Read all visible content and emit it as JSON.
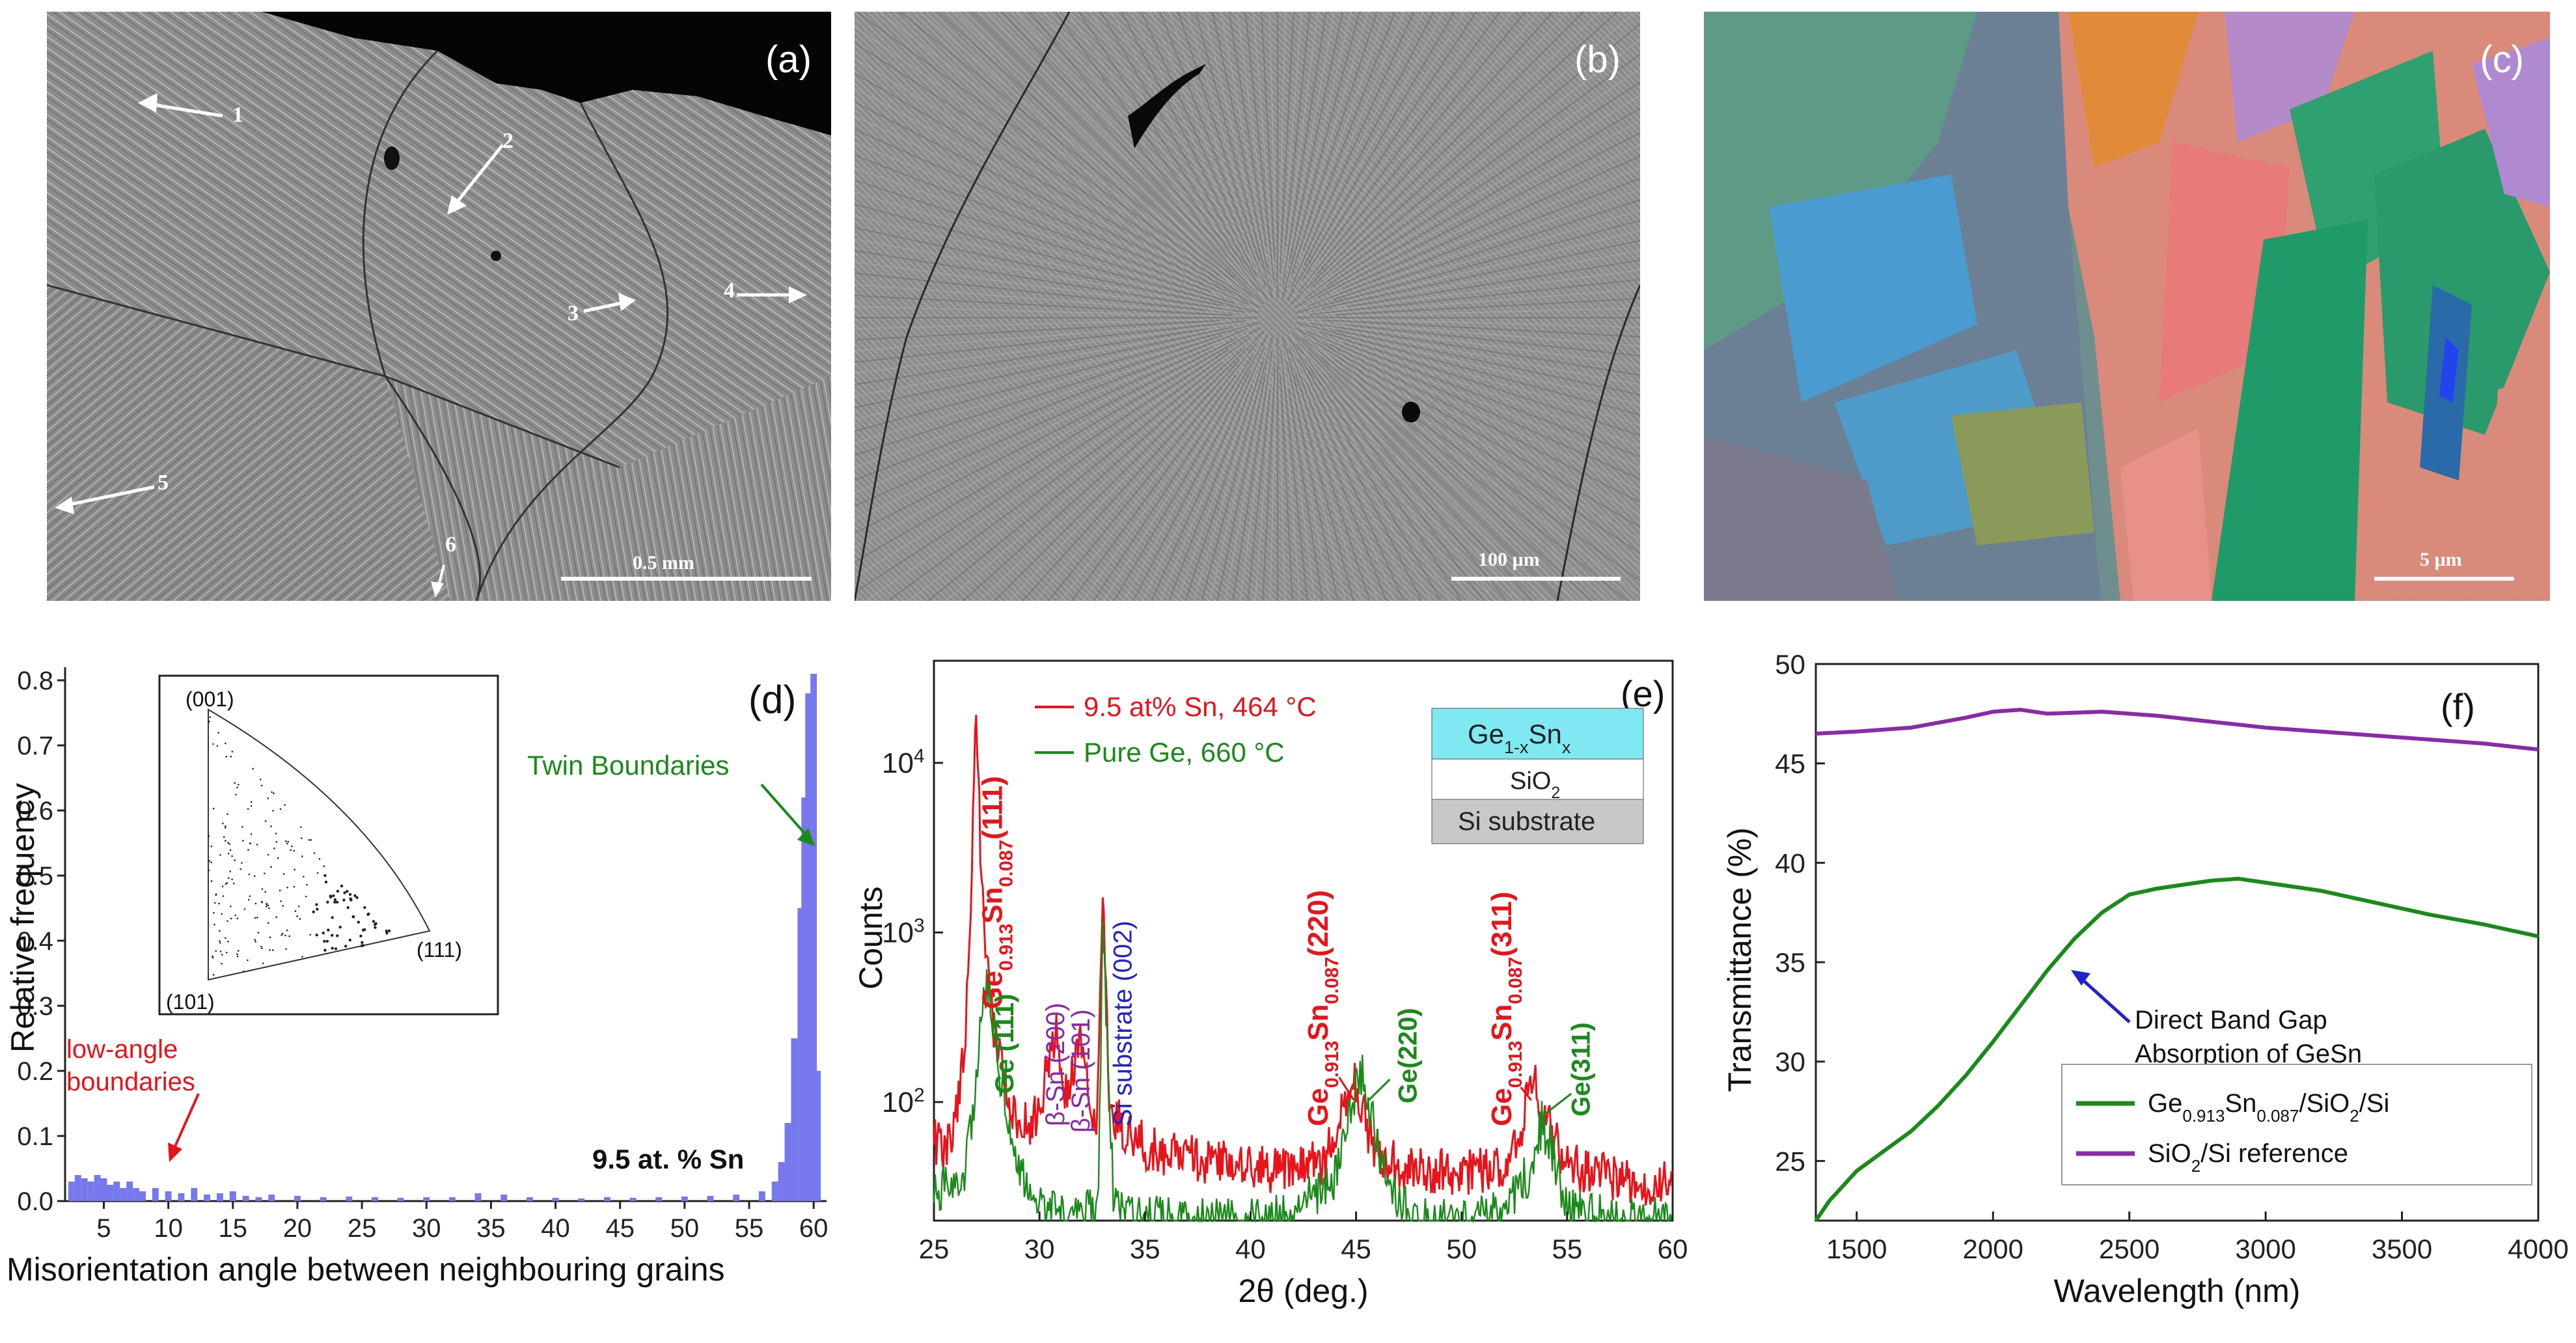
{
  "panels": {
    "a": {
      "label": "(a)",
      "scale": "0.5 mm",
      "arrows": [
        "1",
        "2",
        "3",
        "4",
        "5",
        "6"
      ]
    },
    "b": {
      "label": "(b)",
      "scale": "100 µm"
    },
    "c": {
      "label": "(c)",
      "scale": "5 µm"
    }
  },
  "colors": {
    "red": "#e8141b",
    "green": "#1a8a1a",
    "blue": "#2222cc",
    "purple": "#8a2aa8",
    "hist": "#7777ee",
    "cyan": "#7fe8f0"
  },
  "chart_data": [
    {
      "id": "d",
      "type": "bar",
      "label": "(d)",
      "xlabel": "Misorientation angle between neighbouring grains",
      "ylabel": "Relative frequency",
      "xlim": [
        2,
        61
      ],
      "ylim": [
        0,
        0.82
      ],
      "xticks": [
        "5",
        "10",
        "15",
        "20",
        "25",
        "30",
        "35",
        "40",
        "45",
        "50",
        "55",
        "60"
      ],
      "yticks": [
        "0.0",
        "0.1",
        "0.2",
        "0.3",
        "0.4",
        "0.5",
        "0.6",
        "0.7",
        "0.8"
      ],
      "annotations": {
        "twin": "Twin Boundaries",
        "low1": "low-angle",
        "low2": "boundaries",
        "sample": "9.5 at. % Sn"
      },
      "inset": {
        "top": "(001)",
        "left": "(101)",
        "right": "(111)"
      },
      "series": [
        {
          "name": "9.5 at. % Sn",
          "x": [
            2.5,
            3,
            3.5,
            4,
            4.5,
            5,
            5.5,
            6,
            6.5,
            7,
            7.5,
            8,
            9,
            10,
            11,
            12,
            13,
            14,
            15,
            16,
            17,
            18,
            20,
            22,
            24,
            26,
            28,
            30,
            32,
            34,
            36,
            38,
            40,
            42,
            44,
            46,
            48,
            50,
            52,
            54,
            56,
            57,
            57.5,
            58,
            58.5,
            59,
            59.3,
            59.6,
            60,
            60.3
          ],
          "values": [
            0.03,
            0.04,
            0.035,
            0.03,
            0.04,
            0.035,
            0.025,
            0.03,
            0.02,
            0.03,
            0.02,
            0.015,
            0.02,
            0.015,
            0.012,
            0.02,
            0.01,
            0.012,
            0.015,
            0.008,
            0.006,
            0.01,
            0.008,
            0.006,
            0.007,
            0.006,
            0.005,
            0.006,
            0.006,
            0.012,
            0.01,
            0.006,
            0.005,
            0.004,
            0.006,
            0.005,
            0.006,
            0.007,
            0.008,
            0.01,
            0.015,
            0.03,
            0.06,
            0.12,
            0.25,
            0.45,
            0.62,
            0.78,
            0.81,
            0.2
          ]
        }
      ]
    },
    {
      "id": "e",
      "type": "line",
      "label": "(e)",
      "xlabel": "2θ (deg.)",
      "ylabel": "Counts",
      "xlim": [
        25,
        60
      ],
      "ylim_log": [
        20,
        40000
      ],
      "xticks": [
        "25",
        "30",
        "35",
        "40",
        "45",
        "50",
        "55",
        "60"
      ],
      "yticks": [
        {
          "exp": "2",
          "v": 100
        },
        {
          "exp": "3",
          "v": 1000
        },
        {
          "exp": "4",
          "v": 10000
        }
      ],
      "series": [
        {
          "name": "9.5 at% Sn, 464 °C",
          "color": "#e8141b",
          "x": [
            25,
            25.5,
            26,
            26.5,
            26.8,
            27.0,
            27.2,
            27.5,
            28,
            28.5,
            29,
            29.5,
            30,
            30.5,
            30.8,
            31.2,
            31.6,
            32,
            32.3,
            32.7,
            33.0,
            33.1,
            33.3,
            33.6,
            34,
            35,
            36,
            38,
            40,
            42,
            43.5,
            44.2,
            44.7,
            45,
            45.3,
            45.8,
            46.5,
            47.5,
            50,
            52,
            52.8,
            53.2,
            53.5,
            54,
            54.8,
            56,
            58,
            60
          ],
          "values": [
            60,
            55,
            70,
            250,
            2500,
            20000,
            3500,
            600,
            200,
            110,
            80,
            70,
            90,
            200,
            250,
            120,
            150,
            240,
            120,
            70,
            2200,
            600,
            110,
            80,
            70,
            55,
            50,
            45,
            40,
            40,
            45,
            75,
            110,
            130,
            90,
            55,
            45,
            40,
            38,
            40,
            70,
            110,
            120,
            80,
            45,
            38,
            35,
            32
          ]
        },
        {
          "name": "Pure Ge, 660 °C",
          "color": "#1a8a1a",
          "x": [
            25,
            26,
            26.5,
            27,
            27.3,
            27.5,
            27.8,
            28.2,
            28.8,
            29.5,
            30,
            31,
            32,
            32.8,
            33.0,
            33.2,
            33.5,
            34,
            36,
            38,
            40,
            42,
            44,
            44.7,
            45.3,
            45.8,
            46.5,
            48,
            50,
            52,
            53.3,
            53.8,
            54.3,
            55,
            57,
            60
          ],
          "values": [
            30,
            32,
            40,
            120,
            420,
            500,
            320,
            130,
            55,
            30,
            25,
            22,
            22,
            25,
            1600,
            200,
            30,
            22,
            20,
            20,
            20,
            22,
            35,
            90,
            140,
            75,
            30,
            20,
            20,
            22,
            40,
            75,
            50,
            25,
            20,
            20
          ]
        }
      ],
      "peak_labels": {
        "ge_sn": "Ge",
        "sub1": "0.913",
        "sn": "Sn",
        "sub2": "0.087",
        "p111": "(111)",
        "p220": "(220)",
        "p311": "(311)",
        "ge111": "Ge (111)",
        "ge220": "Ge(220)",
        "ge311": "Ge(311)",
        "bsn200": "β-Sn (200)",
        "bsn101": "β-Sn (101)",
        "si002": "Si substrate (002)"
      },
      "layers": {
        "ge": "Ge",
        "ge_sub": "1-x",
        "sn": "Sn",
        "sn_sub": "x",
        "sio2": "SiO",
        "sio2_sub": "2",
        "si": "Si substrate"
      }
    },
    {
      "id": "f",
      "type": "line",
      "label": "(f)",
      "xlabel": "Wavelength (nm)",
      "ylabel": "Transmittance (%)",
      "xlim": [
        1350,
        4000
      ],
      "ylim": [
        22,
        50
      ],
      "xticks": [
        "1500",
        "2000",
        "2500",
        "3000",
        "3500",
        "4000"
      ],
      "yticks": [
        "25",
        "30",
        "35",
        "40",
        "45",
        "50"
      ],
      "annotation": [
        "Direct Band Gap",
        "Absorption of GeSn"
      ],
      "series": [
        {
          "name": "Ge0.913Sn0.087/SiO2/Si",
          "color": "#1a8a1a",
          "x": [
            1350,
            1400,
            1500,
            1600,
            1700,
            1800,
            1900,
            2000,
            2100,
            2200,
            2300,
            2400,
            2500,
            2600,
            2700,
            2800,
            2900,
            3000,
            3200,
            3400,
            3600,
            3800,
            4000
          ],
          "values": [
            22,
            23,
            24.5,
            25.5,
            26.5,
            27.8,
            29.3,
            31,
            32.8,
            34.6,
            36.2,
            37.5,
            38.4,
            38.7,
            38.9,
            39.1,
            39.2,
            39.0,
            38.6,
            38.0,
            37.4,
            36.9,
            36.3
          ]
        },
        {
          "name": "SiO2/Si reference",
          "color": "#8a2aa8",
          "x": [
            1350,
            1500,
            1700,
            1900,
            2000,
            2100,
            2200,
            2400,
            2600,
            2800,
            3000,
            3200,
            3400,
            3600,
            3800,
            4000
          ],
          "values": [
            46.5,
            46.6,
            46.8,
            47.3,
            47.6,
            47.7,
            47.5,
            47.6,
            47.4,
            47.1,
            46.8,
            46.6,
            46.4,
            46.2,
            46.0,
            45.7
          ]
        }
      ],
      "legend": {
        "g1": "Ge",
        "g1s": "0.913",
        "g2": "Sn",
        "g2s": "0.087",
        "g3": "/SiO",
        "g3s": "2",
        "g4": "/Si",
        "p1": "SiO",
        "p1s": "2",
        "p2": "/Si reference"
      }
    }
  ]
}
